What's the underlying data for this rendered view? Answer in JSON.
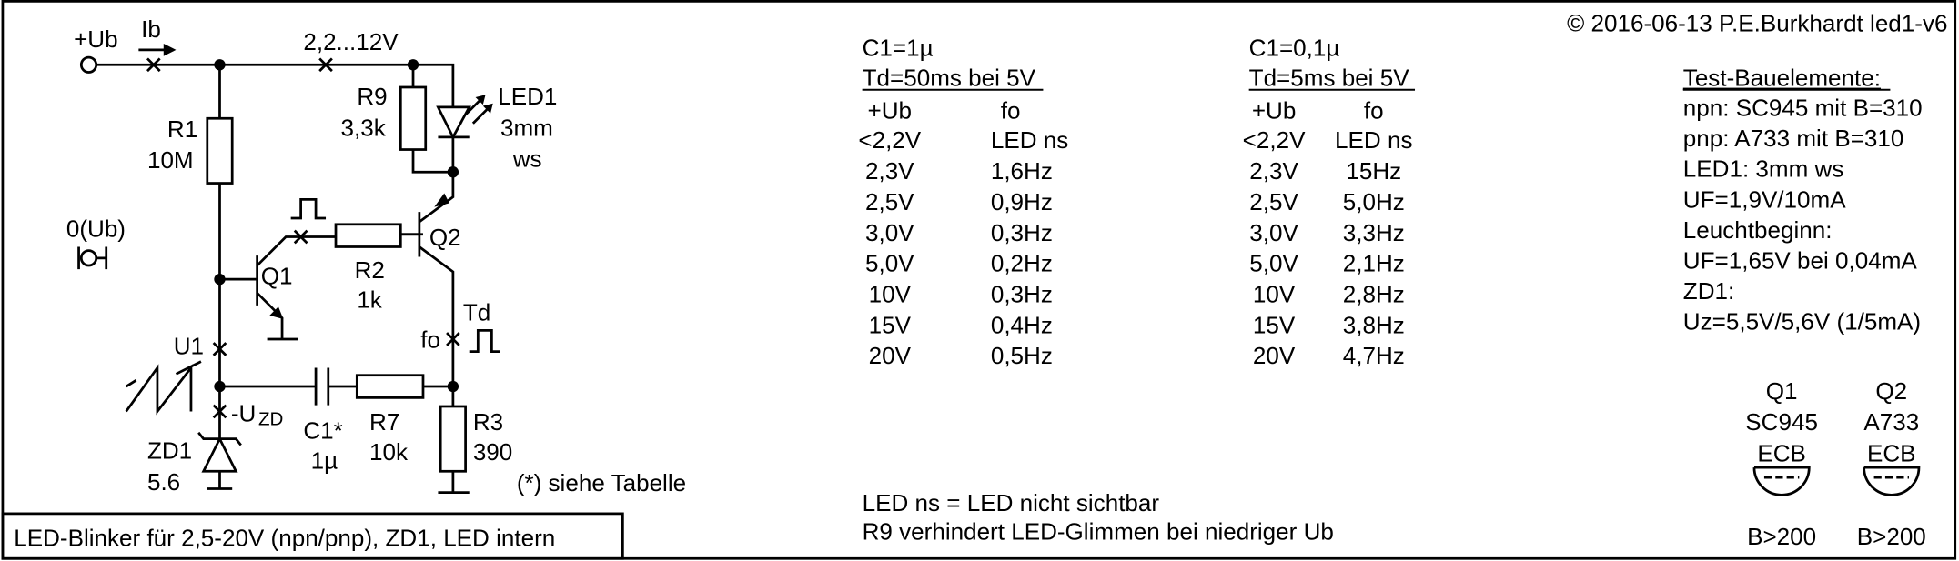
{
  "header": {
    "copyright": "© 2016-06-13 P.E.Burkhardt led1-v6"
  },
  "title": "LED-Blinker für 2,5-20V (npn/pnp), ZD1, LED intern",
  "schematic": {
    "labels": [
      "+Ub",
      "Ib",
      "2,2...12V",
      "R1",
      "10M",
      "R9",
      "3,3k",
      "LED1",
      "3mm",
      "ws",
      "0(Ub)",
      "Q1",
      "R2",
      "1k",
      "Q2",
      "Td",
      "fo",
      "U1",
      "-U",
      "ZD",
      "ZD1",
      "5.6",
      "C1*",
      "1µ",
      "R7",
      "10k",
      "R3",
      "390"
    ],
    "note": "(*) siehe Tabelle"
  },
  "tables": [
    {
      "capacitor": "C1=1µ",
      "delay": "Td=50ms bei 5V",
      "columns": [
        "+Ub",
        "fo"
      ],
      "rows": [
        [
          "<2,2V",
          "LED ns"
        ],
        [
          "2,3V",
          "1,6Hz"
        ],
        [
          "2,5V",
          "0,9Hz"
        ],
        [
          "3,0V",
          "0,3Hz"
        ],
        [
          "5,0V",
          "0,2Hz"
        ],
        [
          "10V",
          "0,3Hz"
        ],
        [
          "15V",
          "0,4Hz"
        ],
        [
          "20V",
          "0,5Hz"
        ]
      ]
    },
    {
      "capacitor": "C1=0,1µ",
      "delay": "Td=5ms bei 5V",
      "columns": [
        "+Ub",
        "fo"
      ],
      "rows": [
        [
          "<2,2V",
          "LED ns"
        ],
        [
          "2,3V",
          "15Hz"
        ],
        [
          "2,5V",
          "5,0Hz"
        ],
        [
          "3,0V",
          "3,3Hz"
        ],
        [
          "5,0V",
          "2,1Hz"
        ],
        [
          "10V",
          "2,8Hz"
        ],
        [
          "15V",
          "3,8Hz"
        ],
        [
          "20V",
          "4,7Hz"
        ]
      ]
    }
  ],
  "notes": [
    "LED ns = LED nicht sichtbar",
    "R9 verhindert LED-Glimmen bei niedriger Ub"
  ],
  "components": {
    "heading": "Test-Bauelemente:",
    "lines": [
      "npn: SC945 mit B=310",
      "pnp: A733 mit B=310",
      "LED1: 3mm ws",
      "UF=1,9V/10mA",
      "Leuchtbeginn:",
      "UF=1,65V bei 0,04mA",
      "ZD1:",
      "Uz=5,5V/5,6V (1/5mA)"
    ]
  },
  "transistors": [
    {
      "name": "Q1",
      "type": "SC945",
      "pins": "ECB",
      "gain": "B>200"
    },
    {
      "name": "Q2",
      "type": "A733",
      "pins": "ECB",
      "gain": "B>200"
    }
  ]
}
